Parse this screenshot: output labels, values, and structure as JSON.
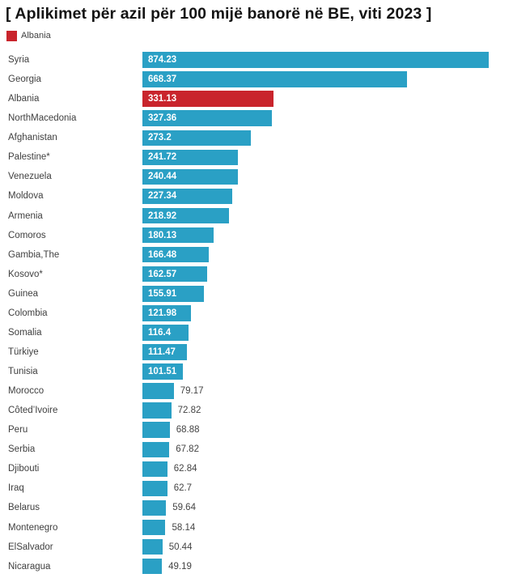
{
  "page": {
    "title": "[ Aplikimet për azil për 100 mijë banorë në BE, viti 2023 ]"
  },
  "legend": {
    "items": [
      {
        "label": "Albania",
        "color": "#c9242c"
      }
    ]
  },
  "colors": {
    "bar_default": "#2aa0c5",
    "bar_highlight": "#c9242c",
    "value_label_inside": "#ffffff",
    "value_label_outside": "#444444",
    "category_label": "#3f3f3f",
    "title": "#141414",
    "background": "#ffffff"
  },
  "chart_data": {
    "type": "bar",
    "orientation": "horizontal",
    "title": "[ Aplikimet për azil për 100 mijë banorë në BE, viti 2023 ]",
    "xlabel": "",
    "ylabel": "",
    "xlim": [
      0,
      874.23
    ],
    "grid": false,
    "legend_position": "top-left",
    "legend_entries": [
      "Albania"
    ],
    "highlight_category": "Albania",
    "value_label_inside_min": 100,
    "categories": [
      "Syria",
      "Georgia",
      "Albania",
      "NorthMacedonia",
      "Afghanistan",
      "Palestine*",
      "Venezuela",
      "Moldova",
      "Armenia",
      "Comoros",
      "Gambia,The",
      "Kosovo*",
      "Guinea",
      "Colombia",
      "Somalia",
      "Türkiye",
      "Tunisia",
      "Morocco",
      "Côted’Ivoire",
      "Peru",
      "Serbia",
      "Djibouti",
      "Iraq",
      "Belarus",
      "Montenegro",
      "ElSalvador",
      "Nicaragua"
    ],
    "values": [
      874.23,
      668.37,
      331.13,
      327.36,
      273.2,
      241.72,
      240.44,
      227.34,
      218.92,
      180.13,
      166.48,
      162.57,
      155.91,
      121.98,
      116.4,
      111.47,
      101.51,
      79.17,
      72.82,
      68.88,
      67.82,
      62.84,
      62.7,
      59.64,
      58.14,
      50.44,
      49.19
    ],
    "value_labels": [
      "874.23",
      "668.37",
      "331.13",
      "327.36",
      "273.2",
      "241.72",
      "240.44",
      "227.34",
      "218.92",
      "180.13",
      "166.48",
      "162.57",
      "155.91",
      "121.98",
      "116.4",
      "111.47",
      "101.51",
      "79.17",
      "72.82",
      "68.88",
      "67.82",
      "62.84",
      "62.7",
      "59.64",
      "58.14",
      "50.44",
      "49.19"
    ]
  }
}
